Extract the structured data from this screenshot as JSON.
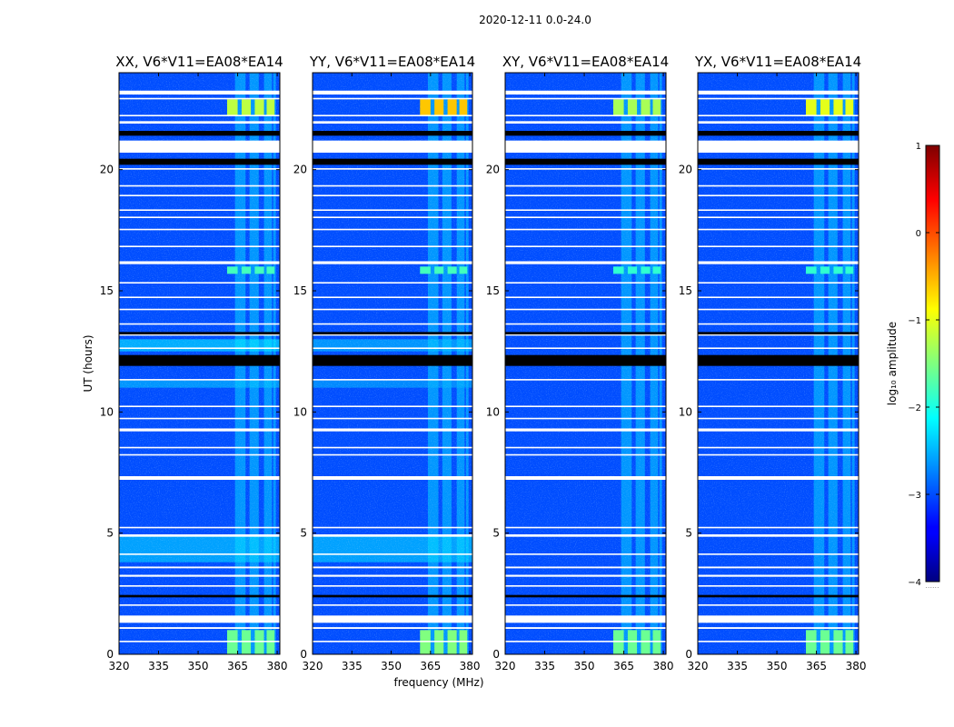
{
  "figure_title": "2020-12-11 0.0-24.0",
  "chart_data": {
    "type": "heatmap",
    "title": "2020-12-11 0.0-24.0",
    "xlabel": "frequency (MHz)",
    "ylabel": "UT (hours)",
    "xlim": [
      320,
      381
    ],
    "ylim": [
      0,
      24
    ],
    "x_ticks": [
      320,
      335,
      350,
      365,
      380
    ],
    "y_ticks": [
      0,
      5,
      10,
      15,
      20
    ],
    "colormap": "jet",
    "colorbar": {
      "label": "log₁₀ amplitude",
      "range": [
        -4,
        1
      ],
      "ticks": [
        1,
        0,
        -1,
        -2,
        -3,
        -4
      ],
      "tick_labels": [
        "1",
        "0",
        "−1",
        "−2",
        "−3",
        "−4"
      ]
    },
    "panels": [
      {
        "title": "XX, V6*V11=EA08*EA14",
        "pol": "XX",
        "baseline": "V6*V11",
        "antennas": "EA08*EA14",
        "show_xlabel": false
      },
      {
        "title": "YY, V6*V11=EA08*EA14",
        "pol": "YY",
        "baseline": "V6*V11",
        "antennas": "EA08*EA14",
        "show_xlabel": true
      },
      {
        "title": "XY, V6*V11=EA08*EA14",
        "pol": "XY",
        "baseline": "V6*V11",
        "antennas": "EA08*EA14",
        "show_xlabel": false
      },
      {
        "title": "YX, V6*V11=EA08*EA14",
        "pol": "YX",
        "baseline": "V6*V11",
        "antennas": "EA08*EA14",
        "show_xlabel": false
      }
    ],
    "background_log_amplitude": -3.0,
    "bright_columns_MHz": [
      [
        364,
        368
      ],
      [
        369.5,
        373
      ],
      [
        375,
        378
      ],
      [
        378.5,
        379.5
      ]
    ],
    "bright_column_log_amplitude": -2.2,
    "strong_rfi_blocks": [
      {
        "t_range": [
          22.2,
          22.9
        ],
        "f_ranges": [
          [
            361,
            365
          ],
          [
            366.5,
            370
          ],
          [
            371.5,
            375
          ],
          [
            376,
            379
          ]
        ],
        "log_amplitude": {
          "XX": -1.2,
          "YY": -0.6,
          "XY": -1.3,
          "YX": -1.0
        }
      },
      {
        "t_range": [
          0.0,
          1.0
        ],
        "f_ranges": [
          [
            361,
            365
          ],
          [
            366.5,
            370
          ],
          [
            371.5,
            375
          ],
          [
            376,
            379
          ]
        ],
        "log_amplitude": {
          "XX": -1.6,
          "YY": -1.5,
          "XY": -1.6,
          "YX": -1.6
        }
      },
      {
        "t_range": [
          15.7,
          16.0
        ],
        "f_ranges": [
          [
            361,
            365
          ],
          [
            366.5,
            370
          ],
          [
            371.5,
            375
          ],
          [
            376,
            379
          ]
        ],
        "log_amplitude": {
          "XX": -1.8,
          "YY": -1.8,
          "XY": -1.9,
          "YX": -1.9
        }
      }
    ],
    "broadband_excess": [
      {
        "t_range": [
          3.8,
          4.9
        ],
        "log_amplitude": {
          "XX": -2.3,
          "YY": -2.3
        }
      },
      {
        "t_range": [
          12.5,
          13.0
        ],
        "log_amplitude": {
          "XX": -2.2,
          "YY": -2.4
        }
      },
      {
        "t_range": [
          11.0,
          11.3
        ],
        "log_amplitude": {
          "XX": -2.4,
          "YY": -2.5
        }
      }
    ],
    "flagged_gaps_hours": [
      [
        0.5,
        0.56
      ],
      [
        1.05,
        1.12
      ],
      [
        1.3,
        1.6
      ],
      [
        2.0,
        2.06
      ],
      [
        2.8,
        2.85
      ],
      [
        3.2,
        3.28
      ],
      [
        3.55,
        3.62
      ],
      [
        4.1,
        4.16
      ],
      [
        4.85,
        4.95
      ],
      [
        5.2,
        5.26
      ],
      [
        7.2,
        7.35
      ],
      [
        8.2,
        8.26
      ],
      [
        8.5,
        8.56
      ],
      [
        9.2,
        9.32
      ],
      [
        9.7,
        9.76
      ],
      [
        10.2,
        10.26
      ],
      [
        11.3,
        11.36
      ],
      [
        12.6,
        12.66
      ],
      [
        13.15,
        13.21
      ],
      [
        13.6,
        13.66
      ],
      [
        14.2,
        14.26
      ],
      [
        14.7,
        14.76
      ],
      [
        15.3,
        15.36
      ],
      [
        16.1,
        16.22
      ],
      [
        16.8,
        16.86
      ],
      [
        17.5,
        17.56
      ],
      [
        18.0,
        18.06
      ],
      [
        18.3,
        18.36
      ],
      [
        18.9,
        18.96
      ],
      [
        19.3,
        19.36
      ],
      [
        20.0,
        20.06
      ],
      [
        20.7,
        21.2
      ],
      [
        21.9,
        22.0
      ],
      [
        22.2,
        22.26
      ],
      [
        22.9,
        22.96
      ],
      [
        23.1,
        23.26
      ]
    ],
    "dark_gaps_hours": [
      [
        2.35,
        2.45
      ],
      [
        11.9,
        12.35
      ],
      [
        13.2,
        13.3
      ],
      [
        20.2,
        20.45
      ],
      [
        21.4,
        21.6
      ]
    ]
  }
}
